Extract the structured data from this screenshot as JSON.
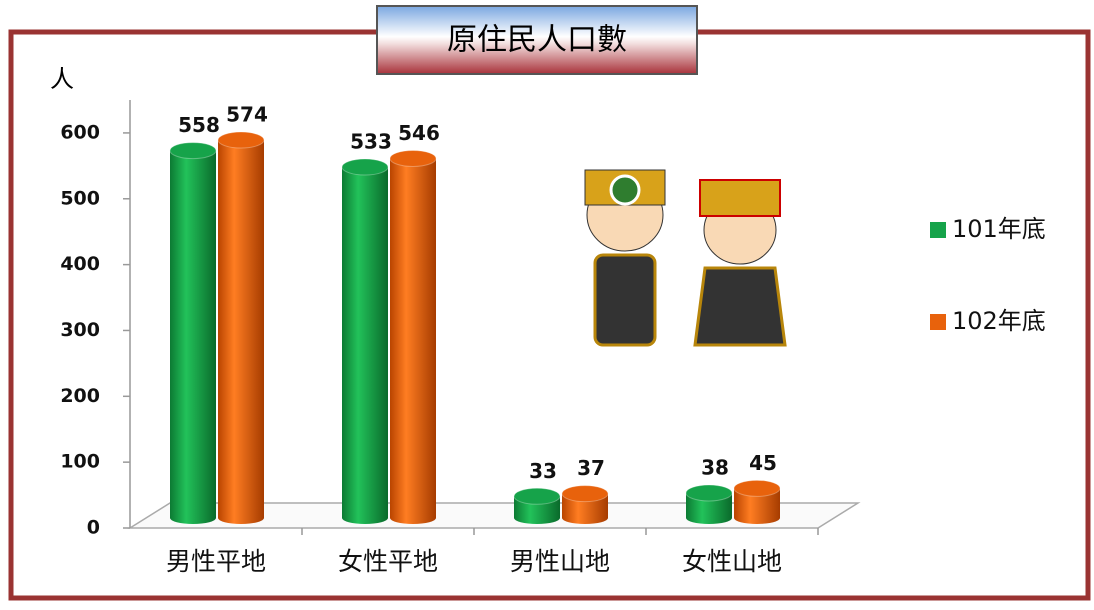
{
  "chart_data": {
    "type": "bar",
    "title": "原住民人口數",
    "y_label": "人",
    "categories": [
      "男性平地",
      "女性平地",
      "男性山地",
      "女性山地"
    ],
    "series": [
      {
        "name": "101年底",
        "color": "#16a34a",
        "values": [
          558,
          533,
          33,
          38
        ]
      },
      {
        "name": "102年底",
        "color": "#e8620c",
        "values": [
          574,
          546,
          37,
          45
        ]
      }
    ],
    "ylim": [
      0,
      650
    ],
    "yticks": [
      0,
      100,
      200,
      300,
      400,
      500,
      600
    ],
    "grid": false,
    "legend": "right"
  }
}
